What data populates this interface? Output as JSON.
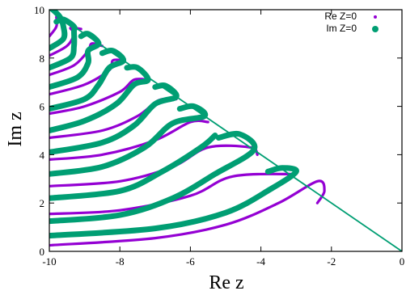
{
  "chart_data": {
    "type": "scatter",
    "xlabel": "Re z",
    "ylabel": "Im z",
    "xlim": [
      -10,
      0
    ],
    "ylim": [
      0,
      10
    ],
    "xticks": [
      "-10",
      "-8",
      "-6",
      "-4",
      "-2",
      "0"
    ],
    "yticks": [
      "0",
      "2",
      "4",
      "6",
      "8",
      "10"
    ],
    "legend_position": "top-right",
    "grid": false,
    "colors": {
      "re": "#9400d3",
      "im": "#009e73",
      "line": "#009e73"
    },
    "legend": [
      {
        "name": "Re Z=0",
        "color": "#9400d3"
      },
      {
        "name": "Im Z=0",
        "color": "#009e73"
      }
    ],
    "boundary_line": {
      "from": [
        -10,
        10
      ],
      "to": [
        0,
        0
      ]
    },
    "series": [
      {
        "name": "Re Z=0",
        "curves": [
          [
            [
              -10,
              0.25
            ],
            [
              -7,
              0.55
            ],
            [
              -5,
              1.1
            ],
            [
              -3.5,
              2.0
            ],
            [
              -2.4,
              2.9
            ],
            [
              -2.2,
              2.5
            ],
            [
              -2.4,
              2.0
            ]
          ],
          [
            [
              -10,
              1.55
            ],
            [
              -8,
              1.7
            ],
            [
              -6,
              2.3
            ],
            [
              -4.8,
              3.1
            ],
            [
              -3.0,
              3.2
            ]
          ],
          [
            [
              -10,
              2.7
            ],
            [
              -8,
              2.9
            ],
            [
              -6.5,
              3.5
            ],
            [
              -5.5,
              4.3
            ],
            [
              -4.3,
              4.3
            ],
            [
              -4.1,
              4.0
            ]
          ],
          [
            [
              -10,
              3.8
            ],
            [
              -8.5,
              4.0
            ],
            [
              -7,
              4.6
            ],
            [
              -6.0,
              5.35
            ],
            [
              -5.5,
              5.35
            ]
          ],
          [
            [
              -10,
              4.7
            ],
            [
              -8.5,
              5.0
            ],
            [
              -7.5,
              5.6
            ],
            [
              -6.9,
              6.25
            ],
            [
              -6.4,
              6.3
            ]
          ],
          [
            [
              -10,
              5.7
            ],
            [
              -9,
              6.0
            ],
            [
              -8,
              6.6
            ],
            [
              -7.6,
              7.1
            ],
            [
              -7.2,
              7.1
            ]
          ],
          [
            [
              -10,
              6.5
            ],
            [
              -9,
              6.9
            ],
            [
              -8.3,
              7.5
            ],
            [
              -8.2,
              7.9
            ],
            [
              -7.9,
              7.9
            ]
          ],
          [
            [
              -10,
              7.3
            ],
            [
              -9.3,
              7.7
            ],
            [
              -8.9,
              8.3
            ],
            [
              -8.8,
              8.6
            ],
            [
              -8.5,
              8.5
            ]
          ],
          [
            [
              -10,
              8.1
            ],
            [
              -9.5,
              8.5
            ],
            [
              -9.3,
              9.0
            ],
            [
              -9.4,
              9.25
            ],
            [
              -9.1,
              9.2
            ]
          ],
          [
            [
              -10,
              8.9
            ],
            [
              -9.8,
              9.3
            ],
            [
              -9.8,
              9.7
            ]
          ]
        ]
      },
      {
        "name": "Im Z=0",
        "curves": [
          [
            [
              -10,
              0.65
            ],
            [
              -7,
              0.95
            ],
            [
              -5,
              1.6
            ],
            [
              -3.7,
              2.6
            ],
            [
              -3.0,
              3.3
            ],
            [
              -3.4,
              3.45
            ],
            [
              -3.8,
              3.3
            ]
          ],
          [
            [
              -10,
              1.25
            ],
            [
              -8,
              1.5
            ],
            [
              -6.5,
              2.2
            ],
            [
              -5.3,
              3.2
            ],
            [
              -4.2,
              4.2
            ],
            [
              -4.6,
              4.85
            ],
            [
              -5.2,
              4.7
            ]
          ],
          [
            [
              -10,
              2.2
            ],
            [
              -8,
              2.5
            ],
            [
              -6.8,
              3.3
            ],
            [
              -5.7,
              4.3
            ],
            [
              -5.3,
              4.8
            ]
          ],
          [
            [
              -10,
              3.2
            ],
            [
              -8.5,
              3.5
            ],
            [
              -7.3,
              4.3
            ],
            [
              -6.5,
              5.3
            ],
            [
              -5.6,
              5.6
            ],
            [
              -5.9,
              6.0
            ],
            [
              -6.3,
              5.9
            ]
          ],
          [
            [
              -10,
              4.1
            ],
            [
              -8.5,
              4.5
            ],
            [
              -7.6,
              5.2
            ],
            [
              -7.0,
              6.1
            ],
            [
              -6.4,
              6.4
            ],
            [
              -6.7,
              6.85
            ],
            [
              -7.0,
              6.8
            ]
          ],
          [
            [
              -10,
              5.0
            ],
            [
              -9,
              5.4
            ],
            [
              -8.1,
              6.1
            ],
            [
              -7.6,
              6.9
            ],
            [
              -7.2,
              7.1
            ],
            [
              -7.5,
              7.6
            ],
            [
              -7.8,
              7.6
            ]
          ],
          [
            [
              -10,
              5.9
            ],
            [
              -9,
              6.3
            ],
            [
              -8.6,
              6.9
            ],
            [
              -8.3,
              7.6
            ],
            [
              -7.9,
              7.9
            ],
            [
              -8.2,
              8.3
            ],
            [
              -8.5,
              8.2
            ]
          ],
          [
            [
              -10,
              6.8
            ],
            [
              -9.2,
              7.2
            ],
            [
              -8.9,
              7.8
            ],
            [
              -8.9,
              8.3
            ],
            [
              -8.6,
              8.6
            ],
            [
              -8.9,
              9.0
            ],
            [
              -9.1,
              8.9
            ]
          ],
          [
            [
              -10,
              7.6
            ],
            [
              -9.4,
              8.0
            ],
            [
              -9.3,
              8.5
            ],
            [
              -9.3,
              9.1
            ],
            [
              -9.3,
              9.3
            ],
            [
              -9.6,
              9.6
            ],
            [
              -9.8,
              9.5
            ]
          ],
          [
            [
              -10,
              8.4
            ],
            [
              -9.6,
              8.8
            ],
            [
              -9.6,
              9.3
            ],
            [
              -9.7,
              9.7
            ],
            [
              -9.9,
              10.0
            ]
          ]
        ]
      }
    ]
  }
}
